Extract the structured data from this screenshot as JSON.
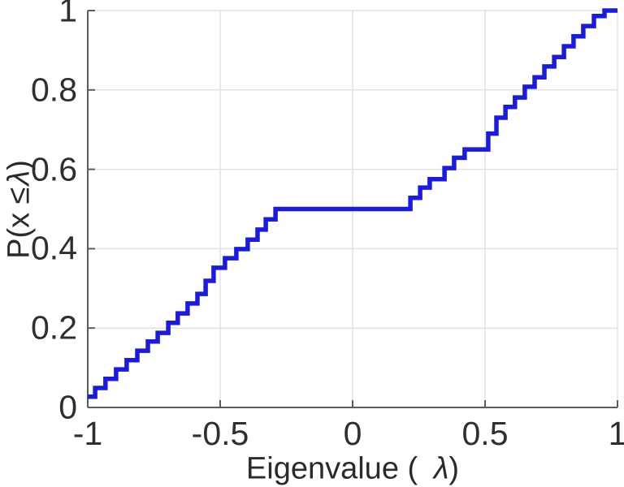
{
  "labels": {
    "xlabel_pre": "Eigenvalue ( ",
    "xlabel_lambda": "λ",
    "xlabel_post": ")",
    "ylabel_pre": "P(x ≤",
    "ylabel_lambda": "λ",
    "ylabel_post": ")"
  },
  "colors": {
    "line": "#1b1be0",
    "grid": "#e3e3e3",
    "axis": "#5c5c5c",
    "text": "#2f2f2f",
    "background": "#ffffff"
  },
  "chart_data": {
    "type": "line",
    "subtype": "empirical-cdf-stairs",
    "title": "",
    "xlabel": "Eigenvalue ( λ)",
    "ylabel": "P(x ≤ λ)",
    "xlim": [
      -1,
      1
    ],
    "ylim": [
      0,
      1
    ],
    "x_ticks": [
      -1,
      -0.5,
      0,
      0.5,
      1
    ],
    "x_tick_labels": [
      "-1",
      "-0.5",
      "0",
      "0.5",
      "1"
    ],
    "y_ticks": [
      0,
      0.2,
      0.4,
      0.6,
      0.8,
      1
    ],
    "y_tick_labels": [
      "0",
      "0.2",
      "0.4",
      "0.6",
      "0.8",
      "1"
    ],
    "grid": true,
    "legend": null,
    "line_width": 5.5,
    "steps_note": "each entry = [eigenvalue where CDF jumps, CDF value after jump]; long plateau at 0.5 between -0.291 and 0.218",
    "steps": [
      [
        -1.0,
        0.027
      ],
      [
        -0.972,
        0.049
      ],
      [
        -0.933,
        0.072
      ],
      [
        -0.893,
        0.096
      ],
      [
        -0.853,
        0.119
      ],
      [
        -0.813,
        0.143
      ],
      [
        -0.773,
        0.166
      ],
      [
        -0.736,
        0.188
      ],
      [
        -0.696,
        0.213
      ],
      [
        -0.66,
        0.237
      ],
      [
        -0.623,
        0.262
      ],
      [
        -0.586,
        0.286
      ],
      [
        -0.555,
        0.319
      ],
      [
        -0.525,
        0.352
      ],
      [
        -0.482,
        0.376
      ],
      [
        -0.439,
        0.399
      ],
      [
        -0.396,
        0.423
      ],
      [
        -0.359,
        0.448
      ],
      [
        -0.328,
        0.474
      ],
      [
        -0.291,
        0.5
      ],
      [
        0.218,
        0.528
      ],
      [
        0.255,
        0.554
      ],
      [
        0.291,
        0.575
      ],
      [
        0.347,
        0.603
      ],
      [
        0.383,
        0.629
      ],
      [
        0.423,
        0.65
      ],
      [
        0.512,
        0.69
      ],
      [
        0.543,
        0.73
      ],
      [
        0.577,
        0.757
      ],
      [
        0.613,
        0.781
      ],
      [
        0.65,
        0.808
      ],
      [
        0.687,
        0.832
      ],
      [
        0.724,
        0.859
      ],
      [
        0.761,
        0.883
      ],
      [
        0.798,
        0.91
      ],
      [
        0.834,
        0.935
      ],
      [
        0.871,
        0.961
      ],
      [
        0.911,
        0.986
      ],
      [
        0.951,
        1.0
      ]
    ]
  }
}
